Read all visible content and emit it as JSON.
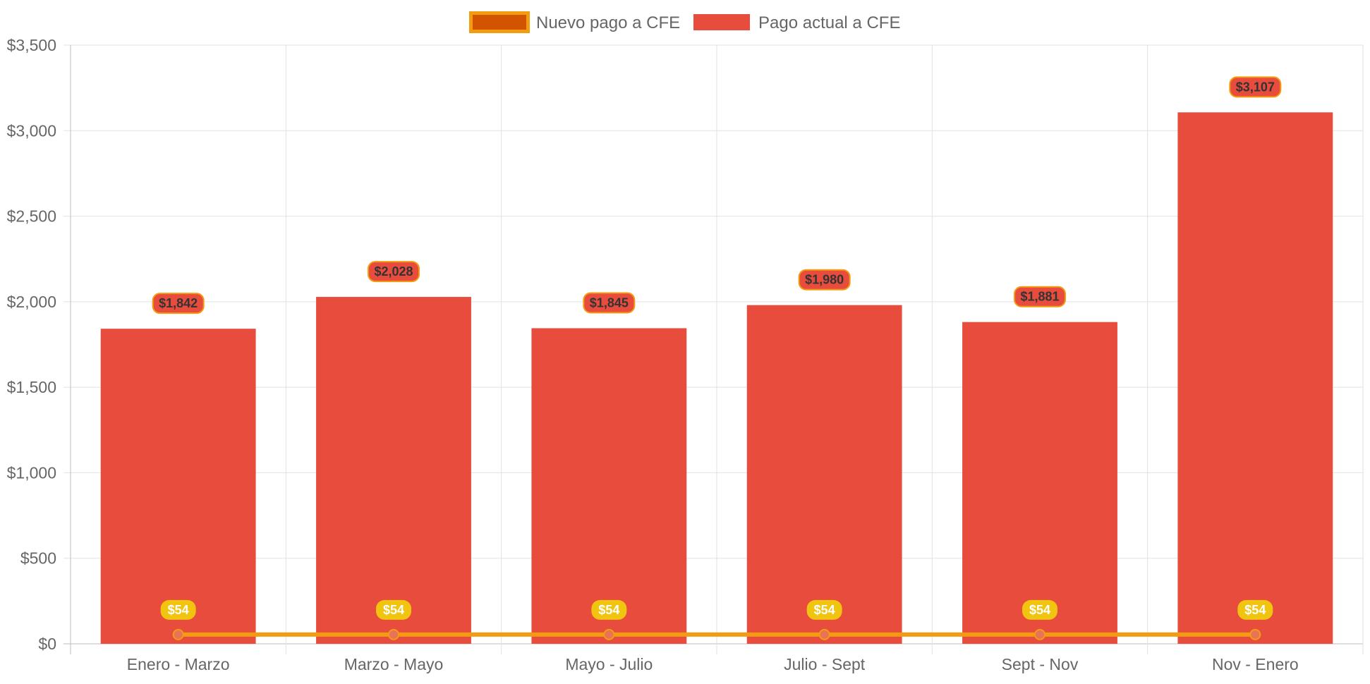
{
  "chart_data": {
    "type": "bar",
    "categories": [
      "Enero - Marzo",
      "Marzo - Mayo",
      "Mayo - Julio",
      "Julio - Sept",
      "Sept - Nov",
      "Nov - Enero"
    ],
    "series": [
      {
        "name": "Pago actual a CFE",
        "type": "bar",
        "values": [
          1842,
          2028,
          1845,
          1980,
          1881,
          3107
        ],
        "data_labels": [
          "$1,842",
          "$2,028",
          "$1,845",
          "$1,980",
          "$1,881",
          "$3,107"
        ],
        "color": "#e74c3c"
      },
      {
        "name": "Nuevo pago a CFE",
        "type": "line",
        "values": [
          54,
          54,
          54,
          54,
          54,
          54
        ],
        "data_labels": [
          "$54",
          "$54",
          "$54",
          "$54",
          "$54",
          "$54"
        ],
        "color": "#f39c12",
        "legend_fill": "#d35400"
      }
    ],
    "ylim": [
      0,
      3500
    ],
    "yticks": [
      0,
      500,
      1000,
      1500,
      2000,
      2500,
      3000,
      3500
    ],
    "ytick_labels": [
      "$0",
      "$500",
      "$1,000",
      "$1,500",
      "$2,000",
      "$2,500",
      "$3,000",
      "$3,500"
    ],
    "grid": true,
    "legend_position": "top-center",
    "legend": [
      "Nuevo pago a CFE",
      "Pago actual a CFE"
    ]
  }
}
